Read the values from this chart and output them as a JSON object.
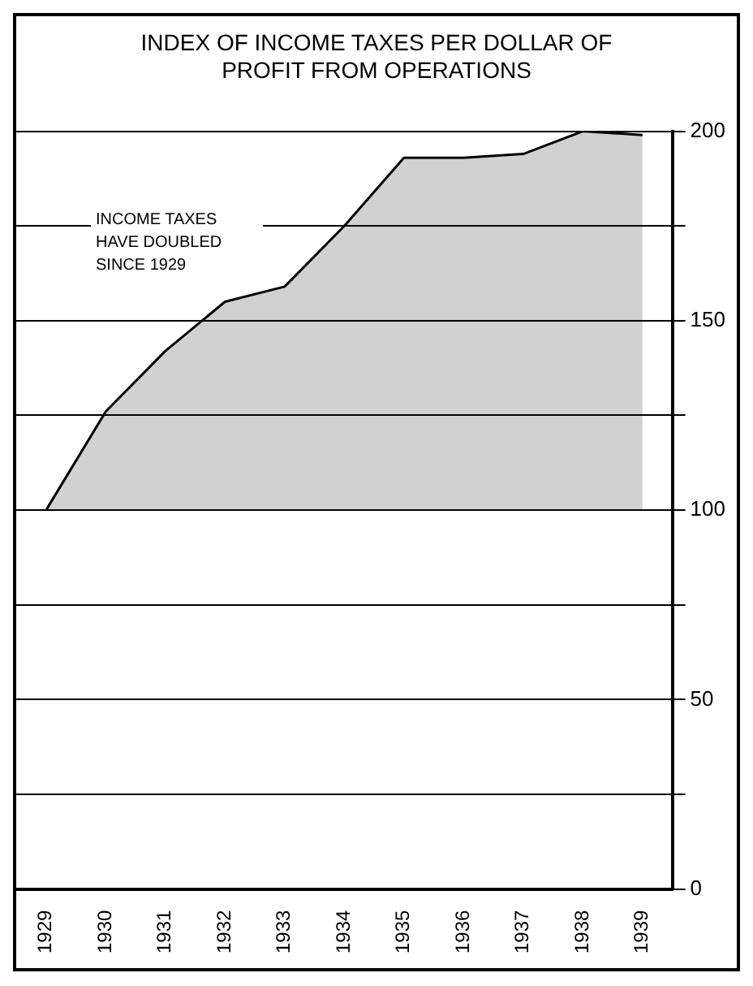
{
  "chart_data": {
    "type": "area",
    "title": "INDEX OF INCOME TAXES PER DOLLAR OF PROFIT FROM OPERATIONS",
    "categories": [
      "1929",
      "1930",
      "1931",
      "1932",
      "1933",
      "1934",
      "1935",
      "1936",
      "1937",
      "1938",
      "1939"
    ],
    "series": [
      {
        "color": "#000000",
        "values": [
          100,
          126,
          142,
          155,
          159,
          175,
          193,
          193,
          194,
          200,
          199
        ]
      }
    ],
    "ylim": [
      0,
      200
    ],
    "yticks": [
      0,
      {
        "value": 25,
        "label": null
      },
      50,
      {
        "value": 75,
        "label": null
      },
      100,
      {
        "value": 125,
        "label": null
      },
      150,
      {
        "value": 175,
        "label": null
      },
      200
    ],
    "grid": "y",
    "legend": false,
    "marker": "none",
    "line_style": "solid",
    "annotations": [
      "INCOME TAXES HAVE DOUBLED SINCE 1929"
    ]
  }
}
